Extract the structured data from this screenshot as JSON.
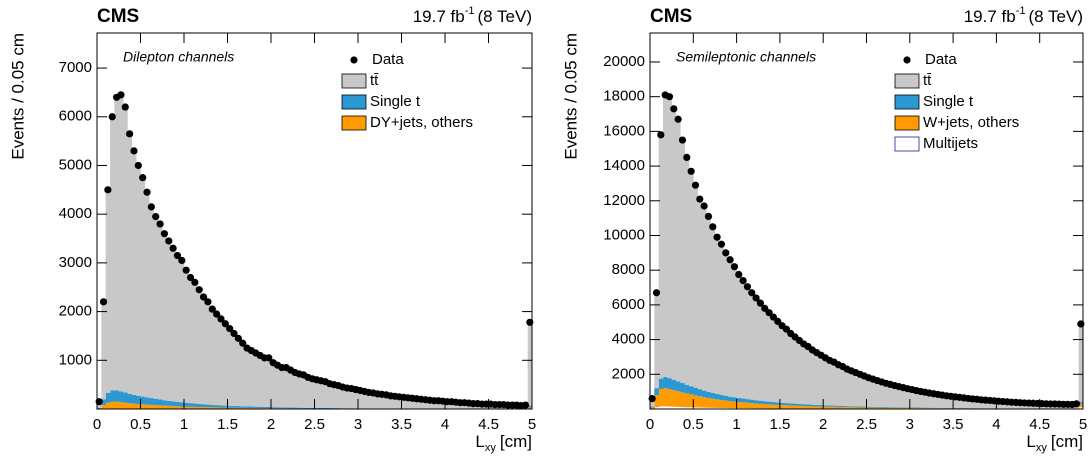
{
  "chart_data": [
    {
      "type": "histogram",
      "title": "CMS",
      "lumi_text": "19.7 fb",
      "lumi_sup": "-1",
      "energy": "(8 TeV)",
      "annotation": "Dilepton channels",
      "ylabel": "Events / 0.05 cm",
      "xlabel": "L",
      "xlabel_sub": "xy",
      "xlabel_unit": "[cm]",
      "legend": "upper right",
      "outline_color": "#1c1c8c",
      "bins": [
        0,
        0.05,
        0.1,
        0.15,
        0.2,
        0.25,
        0.3,
        0.35,
        0.4,
        0.45,
        0.5,
        0.55,
        0.6,
        0.65,
        0.7,
        0.75,
        0.8,
        0.85,
        0.9,
        0.95,
        1,
        1.05,
        1.1,
        1.15,
        1.2,
        1.25,
        1.3,
        1.35,
        1.4,
        1.45,
        1.5,
        1.55,
        1.6,
        1.65,
        1.7,
        1.75,
        1.8,
        1.85,
        1.9,
        1.95,
        2,
        2.05,
        2.1,
        2.15,
        2.2,
        2.25,
        2.3,
        2.35,
        2.4,
        2.45,
        2.5,
        2.55,
        2.6,
        2.65,
        2.7,
        2.75,
        2.8,
        2.85,
        2.9,
        2.95,
        3,
        3.05,
        3.1,
        3.15,
        3.2,
        3.25,
        3.3,
        3.35,
        3.4,
        3.45,
        3.5,
        3.55,
        3.6,
        3.65,
        3.7,
        3.75,
        3.8,
        3.85,
        3.9,
        3.95,
        4,
        4.05,
        4.1,
        4.15,
        4.2,
        4.25,
        4.3,
        4.35,
        4.4,
        4.45,
        4.5,
        4.55,
        4.6,
        4.65,
        4.7,
        4.75,
        4.8,
        4.85,
        4.9,
        4.95,
        5
      ],
      "xlim": [
        0,
        5
      ],
      "xticks": [
        0,
        0.5,
        1,
        1.5,
        2,
        2.5,
        3,
        3.5,
        4,
        4.5,
        5
      ],
      "ylim": [
        0,
        7720
      ],
      "yticks": [
        1000,
        2000,
        3000,
        4000,
        5000,
        6000,
        7000
      ],
      "data": {
        "name": "Data",
        "color": "#000000",
        "values": [
          150,
          2200,
          4500,
          6000,
          6400,
          6450,
          6200,
          5650,
          5300,
          5000,
          4750,
          4450,
          4150,
          3950,
          3800,
          3600,
          3450,
          3300,
          3150,
          3050,
          2850,
          2700,
          2600,
          2450,
          2300,
          2200,
          2050,
          1950,
          1850,
          1750,
          1650,
          1550,
          1450,
          1350,
          1250,
          1200,
          1150,
          1100,
          1050,
          1050,
          950,
          900,
          850,
          850,
          800,
          750,
          720,
          700,
          650,
          620,
          600,
          580,
          560,
          520,
          500,
          480,
          450,
          430,
          420,
          400,
          380,
          360,
          340,
          330,
          310,
          300,
          290,
          270,
          260,
          250,
          240,
          230,
          220,
          210,
          200,
          190,
          180,
          170,
          170,
          160,
          150,
          150,
          140,
          130,
          130,
          120,
          110,
          110,
          100,
          100,
          100,
          90,
          90,
          90,
          80,
          80,
          80,
          70,
          80,
          1780
        ]
      },
      "series": [
        {
          "name": "tt̄",
          "color": "#c8c8c8",
          "values": [
            130,
            2000,
            4150,
            5600,
            6000,
            6100,
            5850,
            5350,
            5000,
            4700,
            4500,
            4200,
            3900,
            3750,
            3600,
            3400,
            3300,
            3150,
            3000,
            2900,
            2700,
            2570,
            2470,
            2330,
            2200,
            2100,
            1950,
            1850,
            1750,
            1680,
            1580,
            1480,
            1390,
            1290,
            1200,
            1150,
            1100,
            1050,
            1000,
            1000,
            910,
            860,
            810,
            810,
            770,
            720,
            690,
            670,
            620,
            590,
            570,
            550,
            530,
            490,
            470,
            450,
            420,
            400,
            390,
            370,
            350,
            330,
            310,
            300,
            290,
            280,
            270,
            250,
            240,
            230,
            220,
            210,
            200,
            190,
            180,
            170,
            160,
            150,
            150,
            140,
            130,
            130,
            120,
            110,
            110,
            110,
            100,
            100,
            90,
            90,
            90,
            80,
            80,
            80,
            70,
            70,
            70,
            60,
            70,
            1700
          ]
        },
        {
          "name": "Single t",
          "color": "#2b98d4",
          "values": [
            10,
            120,
            200,
            230,
            230,
            220,
            210,
            190,
            180,
            170,
            160,
            150,
            140,
            130,
            120,
            110,
            100,
            95,
            90,
            85,
            80,
            75,
            70,
            65,
            60,
            55,
            50,
            48,
            45,
            42,
            40,
            38,
            36,
            34,
            32,
            30,
            28,
            26,
            25,
            24,
            22,
            21,
            20,
            19,
            18,
            17,
            16,
            15,
            15,
            14,
            13,
            13,
            12,
            12,
            11,
            11,
            10,
            10,
            9,
            9,
            9,
            8,
            8,
            8,
            7,
            7,
            7,
            6,
            6,
            6,
            6,
            5,
            5,
            5,
            5,
            5,
            4,
            4,
            4,
            4,
            4,
            4,
            3,
            3,
            3,
            3,
            3,
            3,
            3,
            3,
            3,
            2,
            2,
            2,
            2,
            2,
            2,
            2,
            2,
            40
          ]
        },
        {
          "name": "DY+jets, others",
          "color": "#ff9a00",
          "values": [
            10,
            80,
            130,
            150,
            150,
            140,
            130,
            120,
            110,
            100,
            95,
            90,
            85,
            80,
            75,
            70,
            65,
            60,
            55,
            50,
            48,
            45,
            42,
            40,
            38,
            36,
            34,
            32,
            30,
            28,
            26,
            25,
            24,
            23,
            22,
            21,
            20,
            19,
            18,
            17,
            16,
            15,
            14,
            13,
            12,
            12,
            11,
            11,
            10,
            10,
            9,
            9,
            9,
            8,
            8,
            8,
            7,
            7,
            7,
            6,
            6,
            6,
            6,
            5,
            5,
            5,
            5,
            5,
            4,
            4,
            4,
            4,
            4,
            4,
            3,
            3,
            3,
            3,
            3,
            3,
            3,
            3,
            3,
            3,
            2,
            2,
            2,
            2,
            2,
            2,
            2,
            2,
            2,
            2,
            2,
            2,
            2,
            2,
            2,
            30
          ]
        }
      ]
    },
    {
      "type": "histogram",
      "title": "CMS",
      "lumi_text": "19.7 fb",
      "lumi_sup": "-1",
      "energy": "(8 TeV)",
      "annotation": "Semileptonic channels",
      "ylabel": "Events / 0.05 cm",
      "xlabel": "L",
      "xlabel_sub": "xy",
      "xlabel_unit": "[cm]",
      "legend": "upper right",
      "outline_color": "#1c1c8c",
      "bins": [
        0,
        0.05,
        0.1,
        0.15,
        0.2,
        0.25,
        0.3,
        0.35,
        0.4,
        0.45,
        0.5,
        0.55,
        0.6,
        0.65,
        0.7,
        0.75,
        0.8,
        0.85,
        0.9,
        0.95,
        1,
        1.05,
        1.1,
        1.15,
        1.2,
        1.25,
        1.3,
        1.35,
        1.4,
        1.45,
        1.5,
        1.55,
        1.6,
        1.65,
        1.7,
        1.75,
        1.8,
        1.85,
        1.9,
        1.95,
        2,
        2.05,
        2.1,
        2.15,
        2.2,
        2.25,
        2.3,
        2.35,
        2.4,
        2.45,
        2.5,
        2.55,
        2.6,
        2.65,
        2.7,
        2.75,
        2.8,
        2.85,
        2.9,
        2.95,
        3,
        3.05,
        3.1,
        3.15,
        3.2,
        3.25,
        3.3,
        3.35,
        3.4,
        3.45,
        3.5,
        3.55,
        3.6,
        3.65,
        3.7,
        3.75,
        3.8,
        3.85,
        3.9,
        3.95,
        4,
        4.05,
        4.1,
        4.15,
        4.2,
        4.25,
        4.3,
        4.35,
        4.4,
        4.45,
        4.5,
        4.55,
        4.6,
        4.65,
        4.7,
        4.75,
        4.8,
        4.85,
        4.9,
        4.95,
        5
      ],
      "xlim": [
        0,
        5
      ],
      "xticks": [
        0,
        0.5,
        1,
        1.5,
        2,
        2.5,
        3,
        3.5,
        4,
        4.5,
        5
      ],
      "ylim": [
        0,
        21670
      ],
      "yticks": [
        2000,
        4000,
        6000,
        8000,
        10000,
        12000,
        14000,
        16000,
        18000,
        20000
      ],
      "data": {
        "name": "Data",
        "color": "#000000",
        "values": [
          600,
          6700,
          15800,
          18100,
          18000,
          17300,
          16700,
          15500,
          14500,
          13700,
          12900,
          12100,
          11700,
          11100,
          10500,
          9900,
          9500,
          9000,
          8600,
          8200,
          7750,
          7400,
          7050,
          6700,
          6400,
          6100,
          5800,
          5550,
          5300,
          5050,
          4800,
          4600,
          4350,
          4150,
          3950,
          3750,
          3600,
          3400,
          3250,
          3100,
          2950,
          2800,
          2700,
          2550,
          2450,
          2300,
          2200,
          2100,
          2000,
          1900,
          1800,
          1720,
          1640,
          1560,
          1480,
          1420,
          1350,
          1290,
          1230,
          1170,
          1120,
          1060,
          1010,
          970,
          920,
          880,
          840,
          800,
          760,
          730,
          700,
          670,
          640,
          610,
          580,
          560,
          530,
          510,
          490,
          470,
          450,
          430,
          410,
          390,
          380,
          360,
          350,
          340,
          330,
          320,
          310,
          300,
          290,
          290,
          280,
          270,
          270,
          260,
          300,
          4900
        ]
      },
      "series": [
        {
          "name": "tt̄",
          "color": "#c8c8c8",
          "values": [
            460,
            5500,
            14050,
            16250,
            16220,
            15610,
            15100,
            14000,
            13100,
            12385,
            11670,
            10955,
            10640,
            10105,
            9570,
            9025,
            8680,
            8235,
            7890,
            7522,
            7109,
            6796,
            6478,
            6160,
            5892,
            5619,
            5346,
            5123,
            4900,
            4672,
            4444,
            4260,
            4026,
            3842,
            3658,
            3474,
            3340,
            3151,
            3012,
            2873,
            2734,
            2594,
            2504,
            2364,
            2274,
            2133,
            2041,
            1948,
            1856,
            1760,
            1666,
            1591,
            1515,
            1441,
            1366,
            1310,
            1244,
            1189,
            1133,
            1077,
            1031,
            974,
            928,
            891,
            844,
            807,
            770,
            734,
            697,
            669,
            641,
            613,
            585,
            557,
            530,
            512,
            484,
            466,
            448,
            429,
            411,
            392,
            374,
            356,
            348,
            329,
            321,
            312,
            304,
            294,
            285,
            276,
            267,
            267,
            259,
            249,
            250,
            240,
            280,
            4500
          ]
        },
        {
          "name": "Single t",
          "color": "#2b98d4",
          "values": [
            50,
            400,
            600,
            650,
            640,
            610,
            580,
            540,
            500,
            470,
            440,
            410,
            380,
            360,
            340,
            320,
            300,
            280,
            260,
            250,
            235,
            220,
            210,
            200,
            190,
            180,
            170,
            160,
            150,
            140,
            130,
            125,
            120,
            115,
            110,
            105,
            100,
            95,
            90,
            85,
            80,
            76,
            72,
            68,
            64,
            60,
            58,
            56,
            54,
            52,
            50,
            48,
            46,
            44,
            42,
            40,
            38,
            36,
            34,
            32,
            30,
            29,
            28,
            27,
            26,
            25,
            24,
            23,
            22,
            21,
            20,
            19,
            18,
            17,
            16,
            15,
            14,
            13,
            12,
            12,
            11,
            11,
            10,
            10,
            9,
            9,
            8,
            8,
            7,
            7,
            7,
            6,
            6,
            6,
            5,
            5,
            5,
            5,
            5,
            100
          ]
        },
        {
          "name": "W+jets, others",
          "color": "#ff9a00",
          "values": [
            80,
            700,
            1000,
            1050,
            1000,
            950,
            900,
            850,
            800,
            750,
            700,
            650,
            600,
            560,
            520,
            490,
            460,
            430,
            400,
            380,
            360,
            340,
            320,
            300,
            280,
            265,
            250,
            235,
            220,
            210,
            200,
            190,
            180,
            170,
            160,
            150,
            140,
            135,
            130,
            125,
            120,
            115,
            110,
            105,
            100,
            95,
            90,
            85,
            80,
            78,
            75,
            72,
            70,
            67,
            64,
            62,
            60,
            58,
            56,
            54,
            52,
            50,
            48,
            46,
            44,
            42,
            40,
            38,
            36,
            35,
            34,
            33,
            32,
            31,
            30,
            29,
            28,
            27,
            26,
            25,
            24,
            23,
            22,
            21,
            20,
            19,
            18,
            17,
            16,
            16,
            15,
            15,
            14,
            14,
            13,
            13,
            12,
            12,
            12,
            200
          ]
        },
        {
          "name": "Multijets",
          "color": "#ffffff",
          "values": [
            10,
            100,
            150,
            150,
            140,
            130,
            120,
            110,
            100,
            95,
            90,
            85,
            80,
            75,
            70,
            65,
            60,
            55,
            50,
            48,
            46,
            44,
            42,
            40,
            38,
            36,
            34,
            32,
            30,
            28,
            26,
            25,
            24,
            23,
            22,
            21,
            20,
            19,
            18,
            17,
            16,
            15,
            14,
            13,
            12,
            12,
            11,
            11,
            10,
            10,
            9,
            9,
            9,
            8,
            8,
            8,
            8,
            7,
            7,
            7,
            7,
            7,
            6,
            6,
            6,
            6,
            6,
            5,
            5,
            5,
            5,
            5,
            5,
            5,
            4,
            4,
            4,
            4,
            4,
            4,
            4,
            4,
            4,
            3,
            3,
            3,
            3,
            3,
            3,
            3,
            3,
            3,
            3,
            3,
            3,
            3,
            3,
            3,
            3,
            100
          ]
        }
      ]
    }
  ]
}
